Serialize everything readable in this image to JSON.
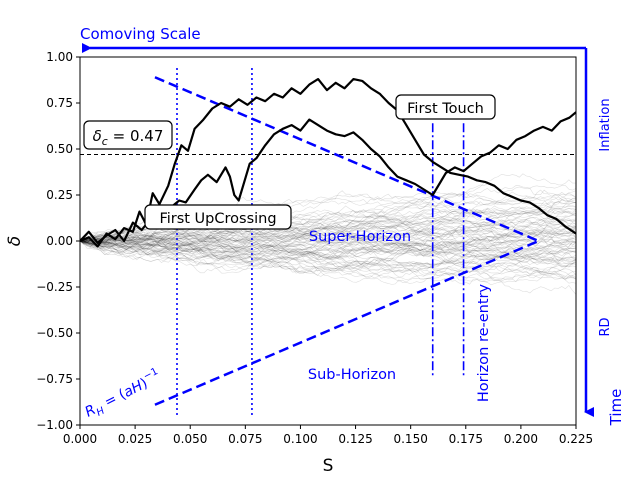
{
  "chart_data": {
    "type": "line",
    "xlabel": "S",
    "ylabel": "δ",
    "xlim": [
      0,
      0.225
    ],
    "ylim": [
      -1.0,
      1.0
    ],
    "x_ticks": [
      0.0,
      0.025,
      0.05,
      0.075,
      0.1,
      0.125,
      0.15,
      0.175,
      0.2,
      0.225
    ],
    "x_tick_labels": [
      "0.000",
      "0.025",
      "0.050",
      "0.075",
      "0.100",
      "0.125",
      "0.150",
      "0.175",
      "0.200",
      "0.225"
    ],
    "y_ticks": [
      -1.0,
      -0.75,
      -0.5,
      -0.25,
      0.0,
      0.25,
      0.5,
      0.75,
      1.0
    ],
    "y_tick_labels": [
      "−1.00",
      "−0.75",
      "−0.50",
      "−0.25",
      "0.00",
      "0.25",
      "0.50",
      "0.75",
      "1.00"
    ],
    "threshold": {
      "value": 0.47,
      "label": "δ_c = 0.47"
    },
    "series": [
      {
        "name": "trajectory-1",
        "color": "#000000",
        "points": [
          [
            0,
            0
          ],
          [
            0.004,
            0.02
          ],
          [
            0.008,
            -0.03
          ],
          [
            0.012,
            0.04
          ],
          [
            0.016,
            0.01
          ],
          [
            0.02,
            0.07
          ],
          [
            0.024,
            0.05
          ],
          [
            0.027,
            0.16
          ],
          [
            0.03,
            0.09
          ],
          [
            0.033,
            0.26
          ],
          [
            0.036,
            0.2
          ],
          [
            0.04,
            0.3
          ],
          [
            0.043,
            0.42
          ],
          [
            0.046,
            0.52
          ],
          [
            0.049,
            0.49
          ],
          [
            0.052,
            0.61
          ],
          [
            0.056,
            0.66
          ],
          [
            0.06,
            0.72
          ],
          [
            0.064,
            0.75
          ],
          [
            0.068,
            0.73
          ],
          [
            0.072,
            0.77
          ],
          [
            0.076,
            0.74
          ],
          [
            0.08,
            0.78
          ],
          [
            0.084,
            0.76
          ],
          [
            0.088,
            0.8
          ],
          [
            0.092,
            0.78
          ],
          [
            0.096,
            0.83
          ],
          [
            0.1,
            0.8
          ],
          [
            0.104,
            0.85
          ],
          [
            0.108,
            0.88
          ],
          [
            0.112,
            0.82
          ],
          [
            0.116,
            0.86
          ],
          [
            0.12,
            0.83
          ],
          [
            0.124,
            0.88
          ],
          [
            0.128,
            0.87
          ],
          [
            0.132,
            0.83
          ],
          [
            0.136,
            0.8
          ],
          [
            0.14,
            0.75
          ],
          [
            0.144,
            0.71
          ],
          [
            0.148,
            0.63
          ],
          [
            0.152,
            0.55
          ],
          [
            0.156,
            0.47
          ],
          [
            0.16,
            0.43
          ],
          [
            0.164,
            0.4
          ],
          [
            0.168,
            0.37
          ],
          [
            0.172,
            0.36
          ],
          [
            0.176,
            0.35
          ],
          [
            0.18,
            0.33
          ],
          [
            0.184,
            0.32
          ],
          [
            0.188,
            0.3
          ],
          [
            0.192,
            0.26
          ],
          [
            0.196,
            0.24
          ],
          [
            0.2,
            0.22
          ],
          [
            0.204,
            0.21
          ],
          [
            0.208,
            0.18
          ],
          [
            0.212,
            0.14
          ],
          [
            0.216,
            0.12
          ],
          [
            0.22,
            0.08
          ],
          [
            0.225,
            0.04
          ]
        ]
      },
      {
        "name": "trajectory-2",
        "color": "#000000",
        "points": [
          [
            0,
            0
          ],
          [
            0.004,
            0.05
          ],
          [
            0.008,
            -0.01
          ],
          [
            0.012,
            0.03
          ],
          [
            0.016,
            0.06
          ],
          [
            0.02,
            0.0
          ],
          [
            0.024,
            0.1
          ],
          [
            0.028,
            0.06
          ],
          [
            0.032,
            0.12
          ],
          [
            0.035,
            0.09
          ],
          [
            0.038,
            0.15
          ],
          [
            0.042,
            0.19
          ],
          [
            0.045,
            0.22
          ],
          [
            0.048,
            0.21
          ],
          [
            0.052,
            0.28
          ],
          [
            0.055,
            0.33
          ],
          [
            0.058,
            0.36
          ],
          [
            0.062,
            0.32
          ],
          [
            0.066,
            0.4
          ],
          [
            0.068,
            0.35
          ],
          [
            0.07,
            0.25
          ],
          [
            0.072,
            0.22
          ],
          [
            0.074,
            0.3
          ],
          [
            0.077,
            0.42
          ],
          [
            0.08,
            0.45
          ],
          [
            0.084,
            0.52
          ],
          [
            0.088,
            0.58
          ],
          [
            0.092,
            0.61
          ],
          [
            0.096,
            0.63
          ],
          [
            0.1,
            0.6
          ],
          [
            0.104,
            0.66
          ],
          [
            0.108,
            0.63
          ],
          [
            0.112,
            0.6
          ],
          [
            0.116,
            0.58
          ],
          [
            0.12,
            0.57
          ],
          [
            0.124,
            0.59
          ],
          [
            0.128,
            0.55
          ],
          [
            0.132,
            0.5
          ],
          [
            0.136,
            0.46
          ],
          [
            0.14,
            0.4
          ],
          [
            0.144,
            0.35
          ],
          [
            0.148,
            0.33
          ],
          [
            0.152,
            0.31
          ],
          [
            0.156,
            0.28
          ],
          [
            0.16,
            0.25
          ],
          [
            0.163,
            0.31
          ],
          [
            0.166,
            0.37
          ],
          [
            0.17,
            0.4
          ],
          [
            0.174,
            0.38
          ],
          [
            0.178,
            0.42
          ],
          [
            0.182,
            0.46
          ],
          [
            0.186,
            0.48
          ],
          [
            0.19,
            0.52
          ],
          [
            0.194,
            0.5
          ],
          [
            0.198,
            0.55
          ],
          [
            0.202,
            0.57
          ],
          [
            0.206,
            0.6
          ],
          [
            0.21,
            0.62
          ],
          [
            0.214,
            0.6
          ],
          [
            0.218,
            0.65
          ],
          [
            0.222,
            0.67
          ],
          [
            0.225,
            0.7
          ]
        ]
      }
    ],
    "background_paths": {
      "count": 90,
      "color": "#000000",
      "description_hidden": true
    },
    "vertical_markers": [
      {
        "x": 0.044,
        "style": "dotted",
        "color": "#0000ff"
      },
      {
        "x": 0.078,
        "style": "dotted",
        "color": "#0000ff"
      },
      {
        "x": 0.16,
        "style": "dashdot",
        "color": "#0000ff"
      },
      {
        "x": 0.174,
        "style": "dashdot",
        "color": "#0000ff"
      }
    ],
    "horizon_lines": [
      {
        "from": [
          0.034,
          0.89
        ],
        "to": [
          0.208,
          0.0
        ],
        "style": "dashed",
        "color": "#0000ff"
      },
      {
        "from": [
          0.034,
          -0.89
        ],
        "to": [
          0.208,
          0.0
        ],
        "style": "dashed",
        "color": "#0000ff"
      }
    ],
    "annotations": {
      "delta_c": "δ_c = 0.47",
      "first_upcrossing": "First UpCrossing",
      "first_touch": "First Touch",
      "super_horizon": "Super-Horizon",
      "sub_horizon": "Sub-Horizon",
      "horizon_reentry": "Horizon re-entry",
      "hubble_radius": "R_H = (aH)^-1",
      "comoving_scale": "Comoving Scale",
      "time": "Time",
      "inflation": "Inflation",
      "rd": "RD"
    },
    "annotation_color": "#0000ff"
  }
}
